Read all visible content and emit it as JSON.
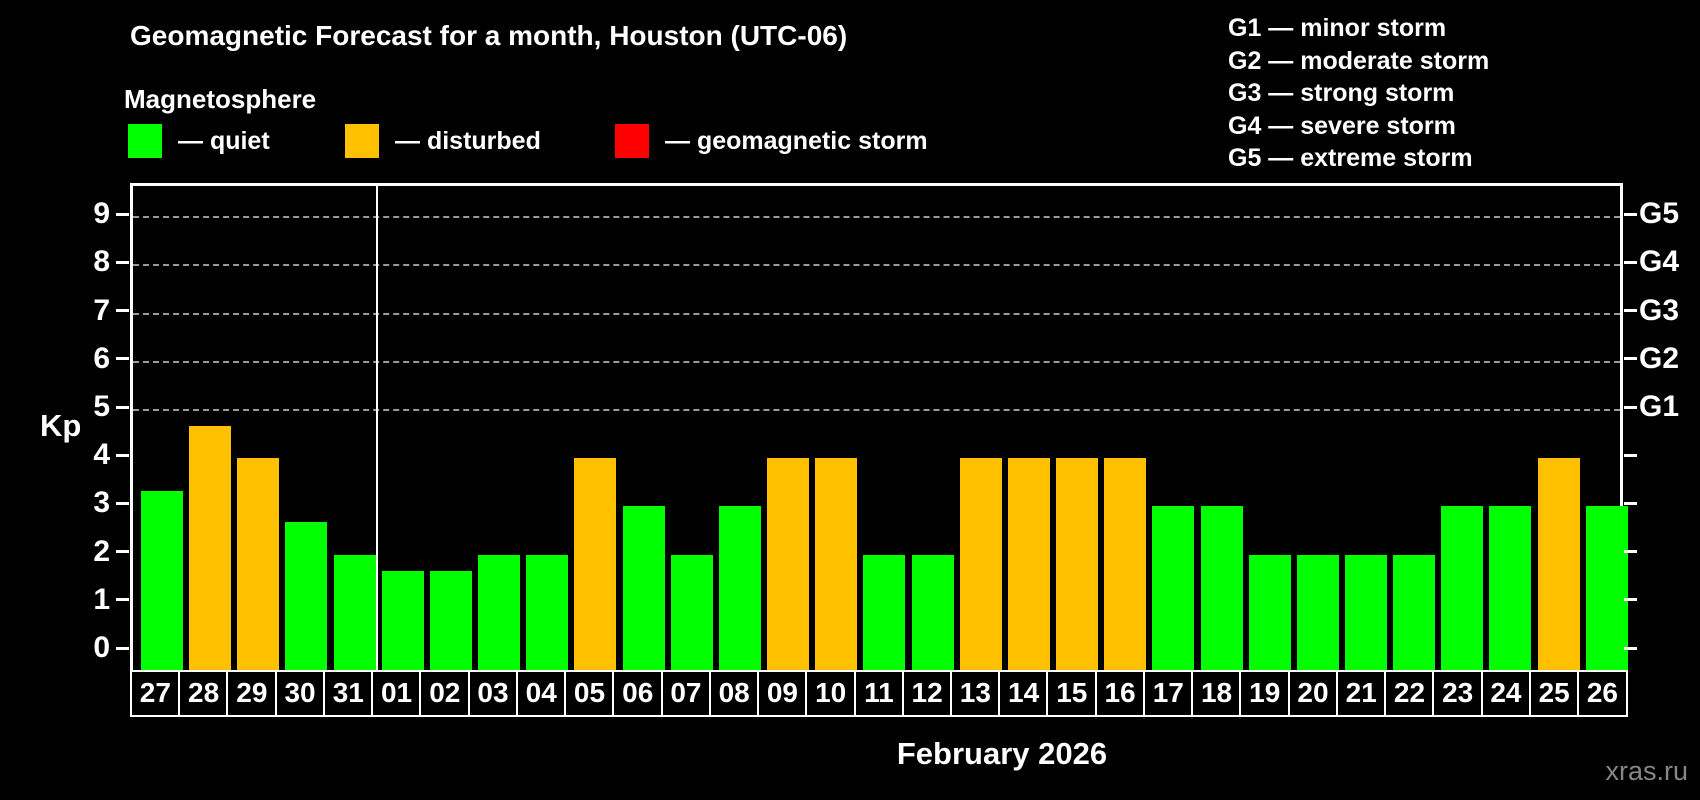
{
  "header": {
    "title": "Geomagnetic Forecast for a month, Houston (UTC-06)",
    "subtitle": "Magnetosphere",
    "legend": [
      {
        "key": "quiet",
        "label": "— quiet",
        "color": "#00ff00"
      },
      {
        "key": "disturbed",
        "label": "— disturbed",
        "color": "#ffc000"
      },
      {
        "key": "storm",
        "label": "— geomagnetic storm",
        "color": "#ff0000"
      }
    ],
    "g_scale_legend": [
      "G1 — minor storm",
      "G2 — moderate storm",
      "G3 — strong storm",
      "G4 — severe storm",
      "G5 — extreme storm"
    ]
  },
  "chart_data": {
    "type": "bar",
    "title": "Geomagnetic Forecast for a month, Houston (UTC-06)",
    "ylabel": "Kp",
    "xlabel": "February 2026",
    "categories": [
      "27",
      "28",
      "29",
      "30",
      "31",
      "01",
      "02",
      "03",
      "04",
      "05",
      "06",
      "07",
      "08",
      "09",
      "10",
      "11",
      "12",
      "13",
      "14",
      "15",
      "16",
      "17",
      "18",
      "19",
      "20",
      "21",
      "22",
      "23",
      "24",
      "25",
      "26"
    ],
    "series": [
      {
        "name": "Kp forecast",
        "values": [
          3.33,
          4.67,
          4,
          2.67,
          2,
          1.67,
          1.67,
          2,
          2,
          4,
          3,
          2,
          3,
          4,
          4,
          2,
          2,
          4,
          4,
          4,
          4,
          3,
          3,
          2,
          2,
          2,
          2,
          3,
          3,
          4,
          3
        ],
        "statuses": [
          "quiet",
          "disturbed",
          "disturbed",
          "quiet",
          "quiet",
          "quiet",
          "quiet",
          "quiet",
          "quiet",
          "disturbed",
          "quiet",
          "quiet",
          "quiet",
          "disturbed",
          "disturbed",
          "quiet",
          "quiet",
          "disturbed",
          "disturbed",
          "disturbed",
          "disturbed",
          "quiet",
          "quiet",
          "quiet",
          "quiet",
          "quiet",
          "quiet",
          "quiet",
          "quiet",
          "disturbed",
          "quiet"
        ]
      }
    ],
    "status_colors": {
      "quiet": "#00ff00",
      "disturbed": "#ffc000",
      "storm": "#ff0000"
    },
    "ylim": [
      0,
      9
    ],
    "yticks": [
      0,
      1,
      2,
      3,
      4,
      5,
      6,
      7,
      8,
      9
    ],
    "gridlines_at": [
      5,
      6,
      7,
      8,
      9
    ],
    "right_axis_labels": [
      {
        "label": "G1",
        "kp": 5
      },
      {
        "label": "G2",
        "kp": 6
      },
      {
        "label": "G3",
        "kp": 7
      },
      {
        "label": "G4",
        "kp": 8
      },
      {
        "label": "G5",
        "kp": 9
      }
    ],
    "legend_position": "top-left",
    "grid": "dashed horizontal at G-levels only",
    "month_boundary_after_index": 4
  },
  "footer": {
    "caption": "February 2026",
    "watermark": "xras.ru"
  }
}
